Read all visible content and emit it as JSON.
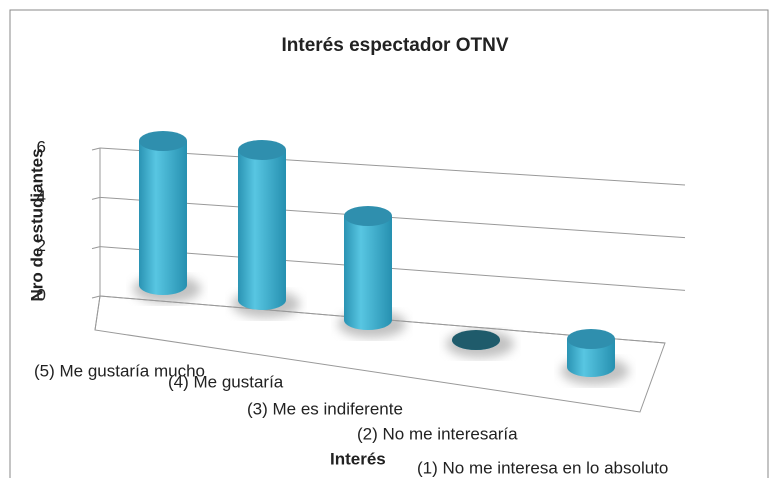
{
  "chart_data": {
    "type": "bar3d",
    "title": "Interés espectador OTNV",
    "categories": [
      "(5) Me gustaría mucho",
      "(4) Me gustaría",
      "(3) Me es indiferente",
      "(2) No me interesaría",
      "(1) No me interesa en lo absoluto"
    ],
    "values": [
      6,
      6,
      4,
      0,
      1
    ],
    "color": "#3fb4d2",
    "ylim": [
      0,
      6
    ],
    "yticks": [
      0,
      2,
      4,
      6
    ],
    "grid": true,
    "xlabel": "Interés",
    "ylabel": "Nro de estudiantes"
  }
}
